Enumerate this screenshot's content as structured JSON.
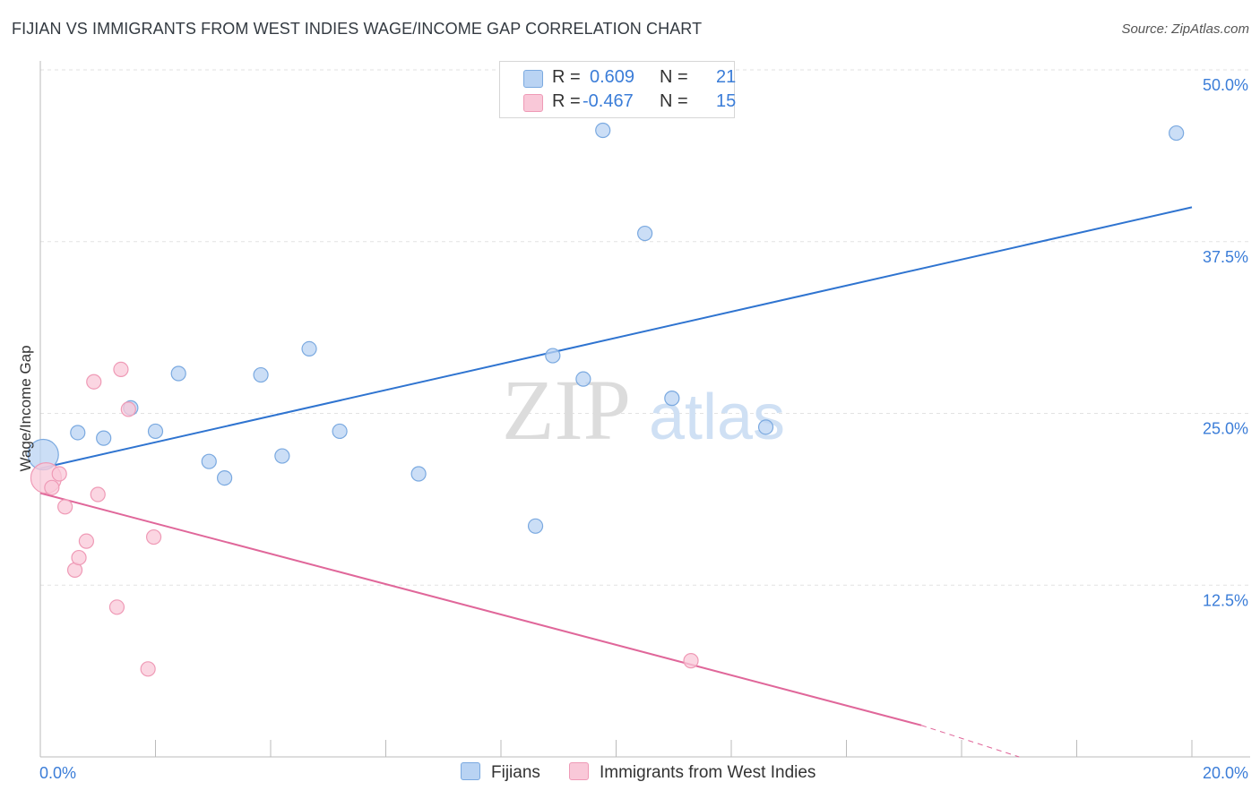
{
  "title": "FIJIAN VS IMMIGRANTS FROM WEST INDIES WAGE/INCOME GAP CORRELATION CHART",
  "source": "Source: ZipAtlas.com",
  "watermark": {
    "zip": "ZIP",
    "atlas": "atlas"
  },
  "colors": {
    "fijian_fill": "#b9d3f3",
    "fijian_stroke": "#7aa9e0",
    "fijian_line": "#2f74d0",
    "wi_fill": "#f9c8d8",
    "wi_stroke": "#ef9ab6",
    "wi_line": "#e0679a",
    "accent_text": "#3b7dd8",
    "grid": "#e2e2e2"
  },
  "legend": {
    "rows": [
      {
        "r_label": "R =",
        "r_value": "0.609",
        "n_label": "N =",
        "n_value": "21"
      },
      {
        "r_label": "R =",
        "r_value": "-0.467",
        "n_label": "N =",
        "n_value": "15"
      }
    ]
  },
  "bottom_legend": {
    "fijians": "Fijians",
    "west_indies": "Immigrants from West Indies"
  },
  "chart_data": {
    "type": "scatter",
    "title": "FIJIAN VS IMMIGRANTS FROM WEST INDIES WAGE/INCOME GAP CORRELATION CHART",
    "ylabel": "Wage/Income Gap",
    "xlabel": "",
    "xlim": [
      0,
      20
    ],
    "ylim": [
      0,
      50
    ],
    "x_tick_labels": [
      "0.0%",
      "20.0%"
    ],
    "y_tick_labels": [
      "12.5%",
      "25.0%",
      "37.5%",
      "50.0%"
    ],
    "y_ticks": [
      12.5,
      25.0,
      37.5,
      50.0
    ],
    "grid": true,
    "series": [
      {
        "name": "Fijians",
        "r": 0.609,
        "n": 21,
        "points": [
          {
            "x": 0.05,
            "y": 22.0,
            "big": true
          },
          {
            "x": 0.65,
            "y": 23.6
          },
          {
            "x": 1.1,
            "y": 23.2
          },
          {
            "x": 1.57,
            "y": 25.4
          },
          {
            "x": 2.0,
            "y": 23.7
          },
          {
            "x": 2.4,
            "y": 27.9
          },
          {
            "x": 2.93,
            "y": 21.5
          },
          {
            "x": 3.2,
            "y": 20.3
          },
          {
            "x": 3.83,
            "y": 27.8
          },
          {
            "x": 4.2,
            "y": 21.9
          },
          {
            "x": 4.67,
            "y": 29.7
          },
          {
            "x": 5.2,
            "y": 23.7
          },
          {
            "x": 6.57,
            "y": 20.6
          },
          {
            "x": 8.6,
            "y": 16.8
          },
          {
            "x": 8.9,
            "y": 29.2
          },
          {
            "x": 9.43,
            "y": 27.5
          },
          {
            "x": 9.77,
            "y": 45.6
          },
          {
            "x": 10.5,
            "y": 38.1
          },
          {
            "x": 10.97,
            "y": 26.1
          },
          {
            "x": 12.6,
            "y": 24.0
          },
          {
            "x": 19.73,
            "y": 45.4
          }
        ],
        "trend": {
          "x0": 0,
          "y0": 21.0,
          "x1": 20,
          "y1": 40.0
        }
      },
      {
        "name": "Immigrants from West Indies",
        "r": -0.467,
        "n": 15,
        "points": [
          {
            "x": 0.1,
            "y": 20.3,
            "big": true
          },
          {
            "x": 0.2,
            "y": 19.6
          },
          {
            "x": 0.33,
            "y": 20.6
          },
          {
            "x": 0.43,
            "y": 18.2
          },
          {
            "x": 0.6,
            "y": 13.6
          },
          {
            "x": 0.67,
            "y": 14.5
          },
          {
            "x": 0.8,
            "y": 15.7
          },
          {
            "x": 0.93,
            "y": 27.3
          },
          {
            "x": 1.0,
            "y": 19.1
          },
          {
            "x": 1.33,
            "y": 10.9
          },
          {
            "x": 1.4,
            "y": 28.2
          },
          {
            "x": 1.53,
            "y": 25.3
          },
          {
            "x": 1.87,
            "y": 6.4
          },
          {
            "x": 1.97,
            "y": 16.0
          },
          {
            "x": 11.3,
            "y": 7.0
          }
        ],
        "trend": {
          "x0": 0,
          "y0": 19.2,
          "x1": 15.3,
          "y1": 2.3
        },
        "trend_dashed": {
          "x0": 15.3,
          "y0": 2.3,
          "x1": 17.0,
          "y1": 0.0
        }
      }
    ]
  }
}
